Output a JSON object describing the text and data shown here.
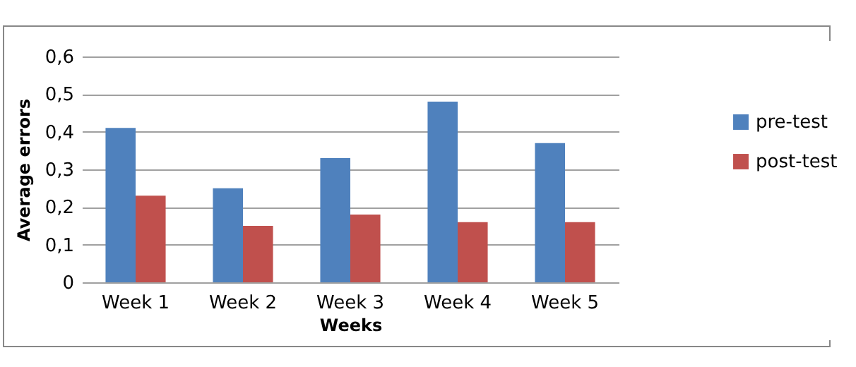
{
  "chart_data": {
    "type": "bar",
    "xlabel": "Weeks",
    "ylabel": "Average errors",
    "categories": [
      "Week 1",
      "Week 2",
      "Week 3",
      "Week 4",
      "Week 5"
    ],
    "series": [
      {
        "name": "pre-test",
        "color": "#4f81bd",
        "values": [
          0.41,
          0.25,
          0.33,
          0.48,
          0.37
        ]
      },
      {
        "name": "post-test",
        "color": "#c0504d",
        "values": [
          0.23,
          0.15,
          0.18,
          0.16,
          0.16
        ]
      }
    ],
    "ylim": [
      0,
      0.6
    ],
    "yticks": [
      {
        "value": 0,
        "label": "0"
      },
      {
        "value": 0.1,
        "label": "0,1"
      },
      {
        "value": 0.2,
        "label": "0,2"
      },
      {
        "value": 0.3,
        "label": "0,3"
      },
      {
        "value": 0.4,
        "label": "0,4"
      },
      {
        "value": 0.5,
        "label": "0,5"
      },
      {
        "value": 0.6,
        "label": "0,6"
      }
    ],
    "grid": "y",
    "legend": "right"
  }
}
